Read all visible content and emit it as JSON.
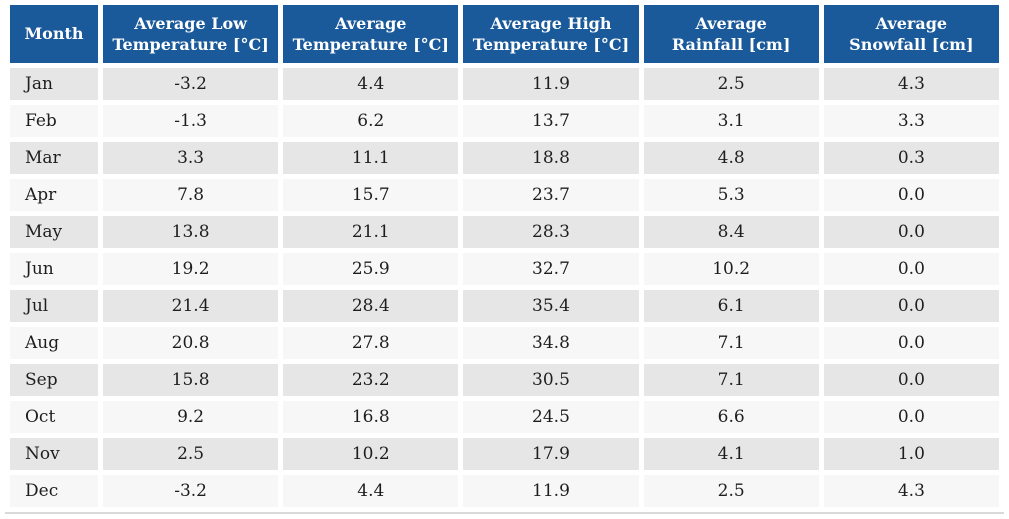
{
  "table": {
    "columns": [
      {
        "label": "Month",
        "label2": ""
      },
      {
        "label": "Average Low",
        "label2": "Temperature [°C]"
      },
      {
        "label": "Average",
        "label2": "Temperature [°C]"
      },
      {
        "label": "Average High",
        "label2": "Temperature [°C]"
      },
      {
        "label": "Average",
        "label2": "Rainfall [cm]"
      },
      {
        "label": "Average",
        "label2": "Snowfall [cm]"
      }
    ],
    "rows": [
      {
        "month": "Jan",
        "cells": [
          "-3.2",
          "4.4",
          "11.9",
          "2.5",
          "4.3"
        ]
      },
      {
        "month": "Feb",
        "cells": [
          "-1.3",
          "6.2",
          "13.7",
          "3.1",
          "3.3"
        ]
      },
      {
        "month": "Mar",
        "cells": [
          "3.3",
          "11.1",
          "18.8",
          "4.8",
          "0.3"
        ]
      },
      {
        "month": "Apr",
        "cells": [
          "7.8",
          "15.7",
          "23.7",
          "5.3",
          "0.0"
        ]
      },
      {
        "month": "May",
        "cells": [
          "13.8",
          "21.1",
          "28.3",
          "8.4",
          "0.0"
        ]
      },
      {
        "month": "Jun",
        "cells": [
          "19.2",
          "25.9",
          "32.7",
          "10.2",
          "0.0"
        ]
      },
      {
        "month": "Jul",
        "cells": [
          "21.4",
          "28.4",
          "35.4",
          "6.1",
          "0.0"
        ]
      },
      {
        "month": "Aug",
        "cells": [
          "20.8",
          "27.8",
          "34.8",
          "7.1",
          "0.0"
        ]
      },
      {
        "month": "Sep",
        "cells": [
          "15.8",
          "23.2",
          "30.5",
          "7.1",
          "0.0"
        ]
      },
      {
        "month": "Oct",
        "cells": [
          "9.2",
          "16.8",
          "24.5",
          "6.6",
          "0.0"
        ]
      },
      {
        "month": "Nov",
        "cells": [
          "2.5",
          "10.2",
          "17.9",
          "4.1",
          "1.0"
        ]
      },
      {
        "month": "Dec",
        "cells": [
          "-3.2",
          "4.4",
          "11.9",
          "2.5",
          "4.3"
        ]
      }
    ]
  },
  "colors": {
    "header_bg": "#1b5a9a",
    "header_text": "#ffffff",
    "row_odd_bg": "#e6e6e6",
    "row_even_bg": "#f7f7f7",
    "cell_text": "#1e1e1e",
    "bottom_border": "#d9d9d9",
    "gutter": "#ffffff"
  },
  "chart_data": {
    "type": "table",
    "title": "",
    "categories": [
      "Jan",
      "Feb",
      "Mar",
      "Apr",
      "May",
      "Jun",
      "Jul",
      "Aug",
      "Sep",
      "Oct",
      "Nov",
      "Dec"
    ],
    "series": [
      {
        "name": "Average Low Temperature [°C]",
        "values": [
          -3.2,
          -1.3,
          3.3,
          7.8,
          13.8,
          19.2,
          21.4,
          20.8,
          15.8,
          9.2,
          2.5,
          -3.2
        ]
      },
      {
        "name": "Average Temperature [°C]",
        "values": [
          4.4,
          6.2,
          11.1,
          15.7,
          21.1,
          25.9,
          28.4,
          27.8,
          23.2,
          16.8,
          10.2,
          4.4
        ]
      },
      {
        "name": "Average High Temperature [°C]",
        "values": [
          11.9,
          13.7,
          18.8,
          23.7,
          28.3,
          32.7,
          35.4,
          34.8,
          30.5,
          24.5,
          17.9,
          11.9
        ]
      },
      {
        "name": "Average Rainfall [cm]",
        "values": [
          2.5,
          3.1,
          4.8,
          5.3,
          8.4,
          10.2,
          6.1,
          7.1,
          7.1,
          6.6,
          4.1,
          2.5
        ]
      },
      {
        "name": "Average Snowfall [cm]",
        "values": [
          4.3,
          3.3,
          0.3,
          0.0,
          0.0,
          0.0,
          0.0,
          0.0,
          0.0,
          0.0,
          1.0,
          4.3
        ]
      }
    ],
    "layout": {
      "striped_rows": true,
      "header_position": "top",
      "grid": "white-gutters"
    }
  }
}
